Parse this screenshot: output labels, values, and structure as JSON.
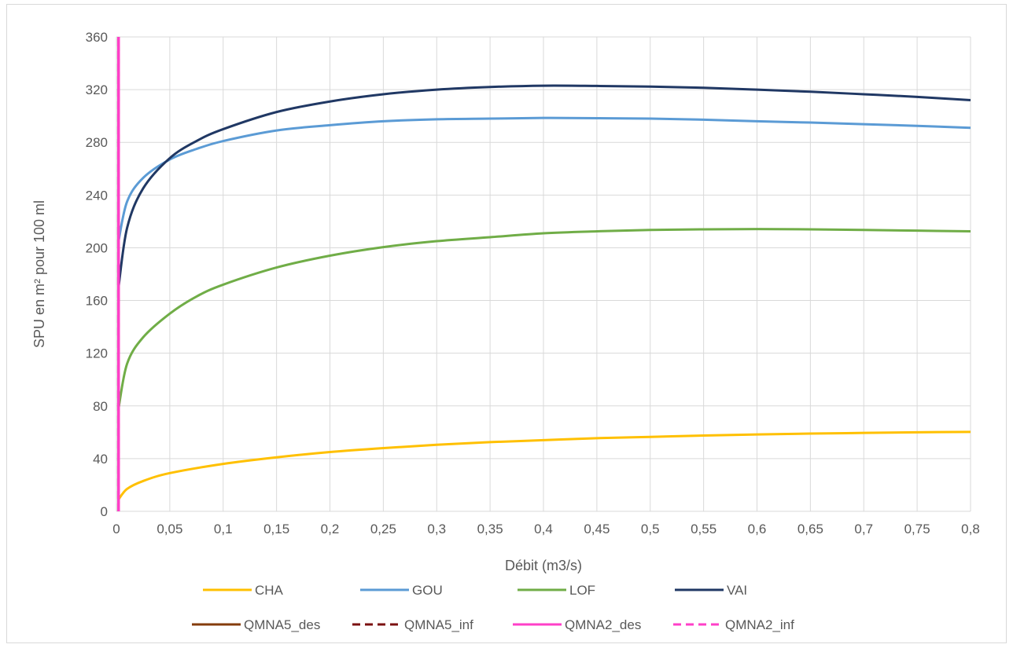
{
  "chart_data": {
    "type": "line",
    "title": "",
    "xlabel": "Débit (m3/s)",
    "ylabel": "SPU en m² pour 100 ml",
    "xlim": [
      0,
      0.8
    ],
    "ylim": [
      0,
      360
    ],
    "x_ticks": [
      "0",
      "0,05",
      "0,1",
      "0,15",
      "0,2",
      "0,25",
      "0,3",
      "0,35",
      "0,4",
      "0,45",
      "0,5",
      "0,55",
      "0,6",
      "0,65",
      "0,7",
      "0,75",
      "0,8"
    ],
    "y_ticks": [
      "0",
      "40",
      "80",
      "120",
      "160",
      "200",
      "240",
      "280",
      "320",
      "360"
    ],
    "grid": true,
    "legend_position": "bottom",
    "series": [
      {
        "name": "CHA",
        "color": "#FFC000",
        "style": "solid",
        "x": [
          0.002,
          0.01,
          0.025,
          0.05,
          0.1,
          0.15,
          0.2,
          0.25,
          0.3,
          0.35,
          0.4,
          0.45,
          0.5,
          0.55,
          0.6,
          0.65,
          0.7,
          0.75,
          0.8
        ],
        "y": [
          9,
          17,
          23,
          29,
          36,
          41,
          45,
          48,
          50.5,
          52.5,
          54,
          55.5,
          56.5,
          57.5,
          58.3,
          59,
          59.5,
          60,
          60.3
        ]
      },
      {
        "name": "GOU",
        "color": "#5B9BD5",
        "style": "solid",
        "x": [
          0.002,
          0.01,
          0.025,
          0.05,
          0.075,
          0.1,
          0.15,
          0.2,
          0.25,
          0.3,
          0.35,
          0.4,
          0.45,
          0.5,
          0.55,
          0.6,
          0.65,
          0.7,
          0.75,
          0.8
        ],
        "y": [
          205,
          235,
          253,
          267,
          275,
          281,
          289,
          293,
          296,
          297.5,
          298,
          298.5,
          298.3,
          298,
          297.2,
          296,
          295,
          293.8,
          292.5,
          291
        ]
      },
      {
        "name": "LOF",
        "color": "#70AD47",
        "style": "solid",
        "x": [
          0.002,
          0.01,
          0.025,
          0.05,
          0.075,
          0.1,
          0.15,
          0.2,
          0.25,
          0.3,
          0.35,
          0.4,
          0.45,
          0.5,
          0.55,
          0.6,
          0.65,
          0.7,
          0.75,
          0.8
        ],
        "y": [
          78,
          112,
          132,
          150,
          163,
          172,
          185,
          194,
          200.5,
          205,
          208,
          211,
          212.5,
          213.5,
          214,
          214.2,
          214,
          213.5,
          213,
          212.5
        ]
      },
      {
        "name": "VAI",
        "color": "#203864",
        "style": "solid",
        "x": [
          0.002,
          0.01,
          0.025,
          0.05,
          0.075,
          0.1,
          0.15,
          0.2,
          0.25,
          0.3,
          0.35,
          0.4,
          0.45,
          0.5,
          0.55,
          0.6,
          0.65,
          0.7,
          0.75,
          0.8
        ],
        "y": [
          170,
          215,
          245,
          268,
          281,
          290,
          303,
          311,
          316.5,
          320,
          322,
          323,
          322.8,
          322.3,
          321.4,
          320,
          318.4,
          316.5,
          314.5,
          312
        ]
      },
      {
        "name": "QMNA5_des",
        "color": "#843C0C",
        "style": "solid",
        "x": [
          0.002,
          0.002
        ],
        "y": [
          0,
          360
        ]
      },
      {
        "name": "QMNA5_inf",
        "color": "#7B1010",
        "style": "dashed",
        "x": [
          0.002,
          0.002
        ],
        "y": [
          0,
          360
        ]
      },
      {
        "name": "QMNA2_des",
        "color": "#FF3FC8",
        "style": "solid",
        "x": [
          0.002,
          0.002
        ],
        "y": [
          0,
          360
        ]
      },
      {
        "name": "QMNA2_inf",
        "color": "#FF3FC8",
        "style": "dashed",
        "x": [
          0.002,
          0.002
        ],
        "y": [
          0,
          360
        ]
      }
    ]
  }
}
